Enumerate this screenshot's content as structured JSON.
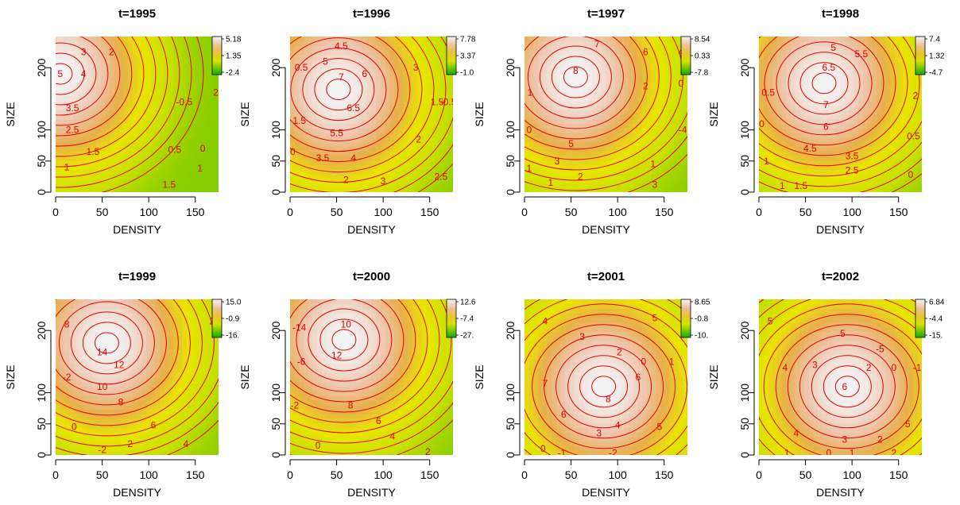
{
  "chart_data": [
    {
      "type": "heatmap",
      "title": "t=1995",
      "xlabel": "DENSITY",
      "ylabel": "SIZE",
      "xlim": [
        0,
        175
      ],
      "ylim": [
        0,
        250
      ],
      "x_ticks": [
        "0",
        "50",
        "100",
        "150"
      ],
      "y_ticks": [
        "0",
        "50",
        "100",
        "200"
      ],
      "colorbar": {
        "ticks": [
          "5.18",
          "1.35",
          "-2.4"
        ]
      },
      "peaks": [
        [
          5,
          190,
          5.0
        ]
      ],
      "contour_labels": [
        {
          "text": "5",
          "x": 5,
          "y": 190
        },
        {
          "text": "4",
          "x": 30,
          "y": 190
        },
        {
          "text": "3",
          "x": 30,
          "y": 225
        },
        {
          "text": "2",
          "x": 60,
          "y": 225
        },
        {
          "text": "3.5",
          "x": 18,
          "y": 135
        },
        {
          "text": "2.5",
          "x": 18,
          "y": 100
        },
        {
          "text": "1.5",
          "x": 40,
          "y": 65
        },
        {
          "text": "1",
          "x": 12,
          "y": 40
        },
        {
          "text": "-0.5",
          "x": 138,
          "y": 145
        },
        {
          "text": "0.5",
          "x": 128,
          "y": 68
        },
        {
          "text": "0",
          "x": 158,
          "y": 70
        },
        {
          "text": "1",
          "x": 155,
          "y": 38
        },
        {
          "text": "1.5",
          "x": 122,
          "y": 12
        },
        {
          "text": "2",
          "x": 172,
          "y": 160
        },
        {
          "text": "2",
          "x": 170,
          "y": 220
        }
      ]
    },
    {
      "type": "heatmap",
      "title": "t=1996",
      "xlabel": "DENSITY",
      "ylabel": "SIZE",
      "xlim": [
        0,
        175
      ],
      "ylim": [
        0,
        250
      ],
      "x_ticks": [
        "0",
        "50",
        "100",
        "150"
      ],
      "y_ticks": [
        "0",
        "50",
        "100",
        "200"
      ],
      "colorbar": {
        "ticks": [
          "7.78",
          "3.37",
          "-1.0"
        ]
      },
      "peaks": [
        [
          52,
          165,
          7.5
        ]
      ],
      "contour_labels": [
        {
          "text": "4.5",
          "x": 55,
          "y": 235
        },
        {
          "text": "5",
          "x": 38,
          "y": 210
        },
        {
          "text": "6",
          "x": 80,
          "y": 190
        },
        {
          "text": "7",
          "x": 55,
          "y": 185
        },
        {
          "text": "6.5",
          "x": 68,
          "y": 135
        },
        {
          "text": "5.5",
          "x": 50,
          "y": 95
        },
        {
          "text": "3.5",
          "x": 35,
          "y": 55
        },
        {
          "text": "4",
          "x": 68,
          "y": 55
        },
        {
          "text": "1.5",
          "x": 10,
          "y": 115
        },
        {
          "text": "0.5",
          "x": 12,
          "y": 200
        },
        {
          "text": "0",
          "x": 3,
          "y": 65
        },
        {
          "text": "2",
          "x": 60,
          "y": 20
        },
        {
          "text": "3",
          "x": 100,
          "y": 18
        },
        {
          "text": "2",
          "x": 138,
          "y": 85
        },
        {
          "text": "3",
          "x": 135,
          "y": 200
        },
        {
          "text": "1.5",
          "x": 158,
          "y": 145
        },
        {
          "text": "2.5",
          "x": 162,
          "y": 25
        },
        {
          "text": "-0.5",
          "x": 170,
          "y": 145
        }
      ]
    },
    {
      "type": "heatmap",
      "title": "t=1997",
      "xlabel": "DENSITY",
      "ylabel": "SIZE",
      "xlim": [
        0,
        175
      ],
      "ylim": [
        0,
        250
      ],
      "x_ticks": [
        "0",
        "50",
        "100",
        "150"
      ],
      "y_ticks": [
        "0",
        "50",
        "100",
        "200"
      ],
      "colorbar": {
        "ticks": [
          "8.54",
          "0.33",
          "-7.8"
        ]
      },
      "peaks": [
        [
          55,
          185,
          8.5
        ]
      ],
      "contour_labels": [
        {
          "text": "8",
          "x": 55,
          "y": 195
        },
        {
          "text": "7",
          "x": 78,
          "y": 238
        },
        {
          "text": "6",
          "x": 130,
          "y": 225
        },
        {
          "text": "4",
          "x": 168,
          "y": 225
        },
        {
          "text": "2",
          "x": 130,
          "y": 170
        },
        {
          "text": "0",
          "x": 168,
          "y": 175
        },
        {
          "text": "-4",
          "x": 170,
          "y": 100
        },
        {
          "text": "5",
          "x": 50,
          "y": 78
        },
        {
          "text": "3",
          "x": 35,
          "y": 50
        },
        {
          "text": "2",
          "x": 60,
          "y": 25
        },
        {
          "text": "1",
          "x": 28,
          "y": 15
        },
        {
          "text": "3",
          "x": 140,
          "y": 12
        },
        {
          "text": "1",
          "x": 6,
          "y": 160
        },
        {
          "text": "0",
          "x": 5,
          "y": 100
        },
        {
          "text": "1",
          "x": 5,
          "y": 38
        },
        {
          "text": "1",
          "x": 138,
          "y": 45
        }
      ]
    },
    {
      "type": "heatmap",
      "title": "t=1998",
      "xlabel": "DENSITY",
      "ylabel": "SIZE",
      "xlim": [
        0,
        175
      ],
      "ylim": [
        0,
        250
      ],
      "x_ticks": [
        "0",
        "50",
        "100",
        "150"
      ],
      "y_ticks": [
        "0",
        "50",
        "100",
        "200"
      ],
      "colorbar": {
        "ticks": [
          "7.4",
          "1.32",
          "-4.7"
        ]
      },
      "peaks": [
        [
          70,
          175,
          7.3
        ]
      ],
      "contour_labels": [
        {
          "text": "5",
          "x": 80,
          "y": 232
        },
        {
          "text": "5.5",
          "x": 110,
          "y": 222
        },
        {
          "text": "6.5",
          "x": 75,
          "y": 200
        },
        {
          "text": "7",
          "x": 72,
          "y": 140
        },
        {
          "text": "6",
          "x": 72,
          "y": 105
        },
        {
          "text": "4.5",
          "x": 55,
          "y": 70
        },
        {
          "text": "3.5",
          "x": 100,
          "y": 58
        },
        {
          "text": "2.5",
          "x": 100,
          "y": 35
        },
        {
          "text": "1.5",
          "x": 45,
          "y": 10
        },
        {
          "text": "1",
          "x": 25,
          "y": 10
        },
        {
          "text": "0.5",
          "x": 10,
          "y": 160
        },
        {
          "text": "0",
          "x": 3,
          "y": 110
        },
        {
          "text": "2",
          "x": 168,
          "y": 155
        },
        {
          "text": "0.5",
          "x": 166,
          "y": 90
        },
        {
          "text": "0",
          "x": 163,
          "y": 28
        },
        {
          "text": "1",
          "x": 8,
          "y": 50
        }
      ]
    },
    {
      "type": "heatmap",
      "title": "t=1999",
      "xlabel": "DENSITY",
      "ylabel": "SIZE",
      "xlim": [
        0,
        175
      ],
      "ylim": [
        0,
        250
      ],
      "x_ticks": [
        "0",
        "50",
        "100",
        "150"
      ],
      "y_ticks": [
        "0",
        "50",
        "100",
        "200"
      ],
      "colorbar": {
        "ticks": [
          "15.0",
          "-0.9",
          "-16."
        ]
      },
      "peaks": [
        [
          55,
          180,
          15.0
        ]
      ],
      "contour_labels": [
        {
          "text": "14",
          "x": 50,
          "y": 165
        },
        {
          "text": "12",
          "x": 68,
          "y": 145
        },
        {
          "text": "10",
          "x": 50,
          "y": 110
        },
        {
          "text": "8",
          "x": 70,
          "y": 85
        },
        {
          "text": "6",
          "x": 105,
          "y": 48
        },
        {
          "text": "4",
          "x": 140,
          "y": 18
        },
        {
          "text": "2",
          "x": 80,
          "y": 18
        },
        {
          "text": "0",
          "x": 20,
          "y": 45
        },
        {
          "text": "-2",
          "x": 50,
          "y": 8
        },
        {
          "text": "-2",
          "x": 12,
          "y": 125
        },
        {
          "text": "8",
          "x": 12,
          "y": 210
        },
        {
          "text": "2",
          "x": 168,
          "y": 215
        }
      ]
    },
    {
      "type": "heatmap",
      "title": "t=2000",
      "xlabel": "DENSITY",
      "ylabel": "SIZE",
      "xlim": [
        0,
        175
      ],
      "ylim": [
        0,
        250
      ],
      "x_ticks": [
        "0",
        "50",
        "100",
        "150"
      ],
      "y_ticks": [
        "0",
        "50",
        "100",
        "200"
      ],
      "colorbar": {
        "ticks": [
          "12.6",
          "-7.4",
          "-27."
        ]
      },
      "peaks": [
        [
          58,
          185,
          12.5
        ]
      ],
      "contour_labels": [
        {
          "text": "10",
          "x": 60,
          "y": 210
        },
        {
          "text": "12",
          "x": 50,
          "y": 160
        },
        {
          "text": "8",
          "x": 65,
          "y": 80
        },
        {
          "text": "6",
          "x": 95,
          "y": 55
        },
        {
          "text": "4",
          "x": 110,
          "y": 30
        },
        {
          "text": "2",
          "x": 148,
          "y": 5
        },
        {
          "text": "0",
          "x": 30,
          "y": 15
        },
        {
          "text": "-2",
          "x": 5,
          "y": 80
        },
        {
          "text": "-6",
          "x": 12,
          "y": 150
        },
        {
          "text": "-14",
          "x": 10,
          "y": 205
        }
      ]
    },
    {
      "type": "heatmap",
      "title": "t=2001",
      "xlabel": "DENSITY",
      "ylabel": "SIZE",
      "xlim": [
        0,
        175
      ],
      "ylim": [
        0,
        250
      ],
      "x_ticks": [
        "0",
        "50",
        "100",
        "150"
      ],
      "y_ticks": [
        "0",
        "50",
        "100",
        "200"
      ],
      "colorbar": {
        "ticks": [
          "8.65",
          "-0.8",
          "-10."
        ]
      },
      "peaks": [
        [
          85,
          110,
          8.6
        ]
      ],
      "contour_labels": [
        {
          "text": "8",
          "x": 90,
          "y": 90
        },
        {
          "text": "7",
          "x": 22,
          "y": 115
        },
        {
          "text": "6",
          "x": 42,
          "y": 65
        },
        {
          "text": "6",
          "x": 122,
          "y": 125
        },
        {
          "text": "5",
          "x": 145,
          "y": 45
        },
        {
          "text": "4",
          "x": 22,
          "y": 215
        },
        {
          "text": "3",
          "x": 62,
          "y": 190
        },
        {
          "text": "2",
          "x": 102,
          "y": 165
        },
        {
          "text": "0",
          "x": 128,
          "y": 150
        },
        {
          "text": "5",
          "x": 140,
          "y": 220
        },
        {
          "text": "4",
          "x": 100,
          "y": 48
        },
        {
          "text": "3",
          "x": 80,
          "y": 35
        },
        {
          "text": "0",
          "x": 20,
          "y": 10
        },
        {
          "text": "-1",
          "x": 40,
          "y": 3
        },
        {
          "text": "-2",
          "x": 95,
          "y": 3
        },
        {
          "text": "1",
          "x": 158,
          "y": 150
        }
      ]
    },
    {
      "type": "heatmap",
      "title": "t=2002",
      "xlabel": "DENSITY",
      "ylabel": "SIZE",
      "xlim": [
        0,
        175
      ],
      "ylim": [
        0,
        250
      ],
      "x_ticks": [
        "0",
        "50",
        "100",
        "150"
      ],
      "y_ticks": [
        "0",
        "50",
        "100",
        "200"
      ],
      "colorbar": {
        "ticks": [
          "6.84",
          "-4.4",
          "-15."
        ]
      },
      "peaks": [
        [
          95,
          110,
          6.8
        ]
      ],
      "contour_labels": [
        {
          "text": "6",
          "x": 92,
          "y": 110
        },
        {
          "text": "5",
          "x": 160,
          "y": 50
        },
        {
          "text": "4",
          "x": 40,
          "y": 35
        },
        {
          "text": "3",
          "x": 92,
          "y": 25
        },
        {
          "text": "2",
          "x": 130,
          "y": 25
        },
        {
          "text": "1",
          "x": 30,
          "y": 3
        },
        {
          "text": "0",
          "x": 75,
          "y": 3
        },
        {
          "text": "1",
          "x": 100,
          "y": 3
        },
        {
          "text": "2",
          "x": 145,
          "y": 3
        },
        {
          "text": "5",
          "x": 12,
          "y": 215
        },
        {
          "text": "4",
          "x": 28,
          "y": 140
        },
        {
          "text": "3",
          "x": 60,
          "y": 145
        },
        {
          "text": "2",
          "x": 118,
          "y": 140
        },
        {
          "text": "0",
          "x": 145,
          "y": 140
        },
        {
          "text": "-1",
          "x": 170,
          "y": 140
        },
        {
          "text": "5",
          "x": 90,
          "y": 195
        },
        {
          "text": "-5",
          "x": 130,
          "y": 170
        }
      ]
    }
  ]
}
